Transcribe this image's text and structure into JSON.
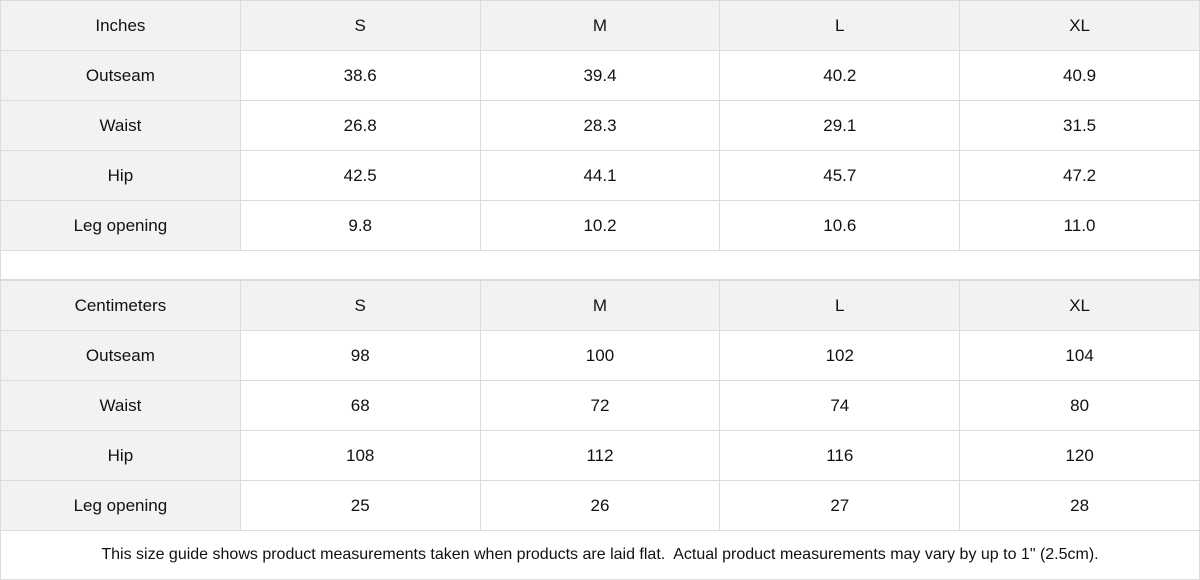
{
  "inches": {
    "header": [
      "Inches",
      "S",
      "M",
      "L",
      "XL"
    ],
    "rows": [
      [
        "Outseam",
        "38.6",
        "39.4",
        "40.2",
        "40.9"
      ],
      [
        "Waist",
        "26.8",
        "28.3",
        "29.1",
        "31.5"
      ],
      [
        "Hip",
        "42.5",
        "44.1",
        "45.7",
        "47.2"
      ],
      [
        "Leg opening",
        "9.8",
        "10.2",
        "10.6",
        "11.0"
      ]
    ]
  },
  "centimeters": {
    "header": [
      "Centimeters",
      "S",
      "M",
      "L",
      "XL"
    ],
    "rows": [
      [
        "Outseam",
        "98",
        "100",
        "102",
        "104"
      ],
      [
        "Waist",
        "68",
        "72",
        "74",
        "80"
      ],
      [
        "Hip",
        "108",
        "112",
        "116",
        "120"
      ],
      [
        "Leg opening",
        "25",
        "26",
        "27",
        "28"
      ]
    ]
  },
  "note": "This size guide shows product measurements taken when products are laid flat.  Actual product measurements may vary by up to 1\" (2.5cm)."
}
